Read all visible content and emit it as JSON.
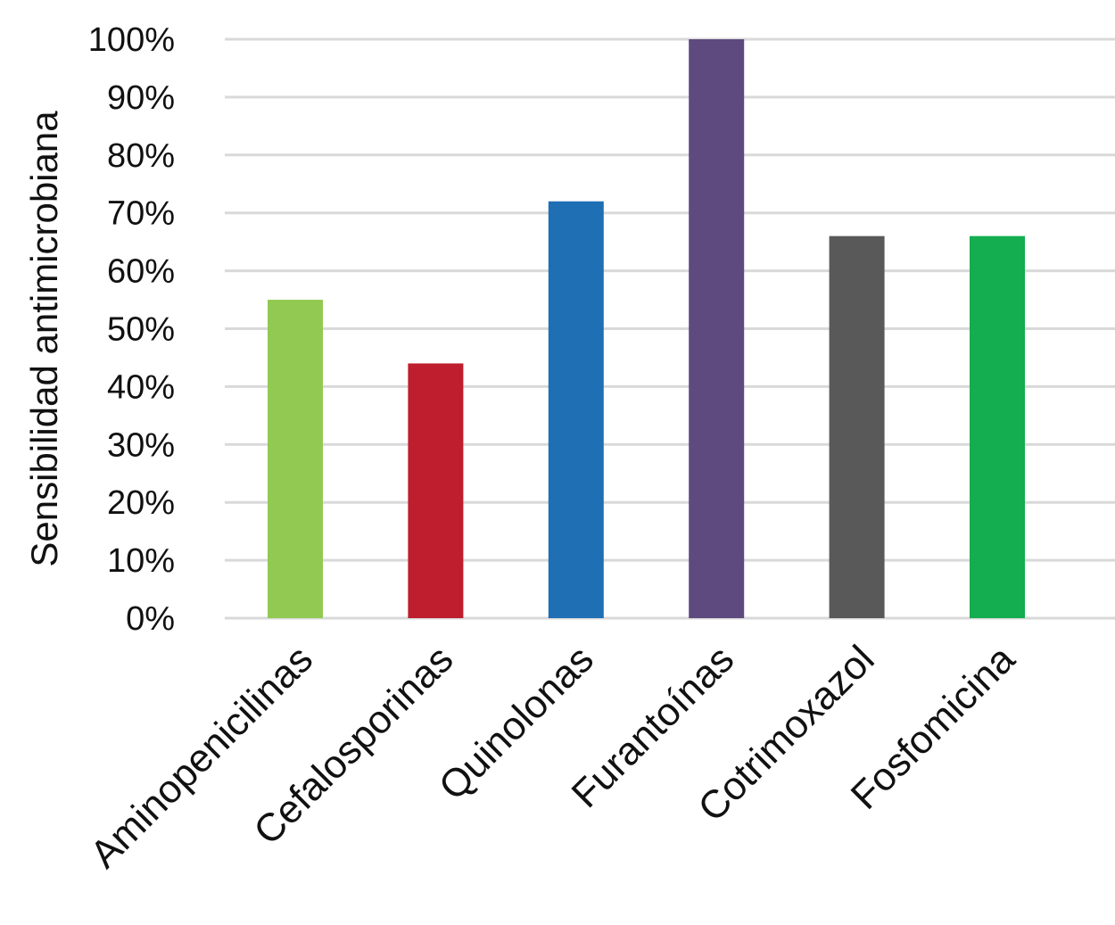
{
  "chart_data": {
    "type": "bar",
    "title": "",
    "xlabel": "",
    "ylabel": "Sensibilidad antimicrobiana",
    "categories": [
      "Aminopenicilinas",
      "Cefalosporinas",
      "Quinolonas",
      "Furantoínas",
      "Cotrimoxazol",
      "Fosfomicina"
    ],
    "values": [
      55,
      44,
      72,
      100,
      66,
      66
    ],
    "colors": [
      "#92c952",
      "#be1e2d",
      "#1f6fb5",
      "#5e4a7e",
      "#595959",
      "#14ad50"
    ],
    "ylim": [
      0,
      100
    ],
    "yticks": [
      0,
      10,
      20,
      30,
      40,
      50,
      60,
      70,
      80,
      90,
      100
    ],
    "ytick_labels": [
      "0%",
      "10%",
      "20%",
      "30%",
      "40%",
      "50%",
      "60%",
      "70%",
      "80%",
      "90%",
      "100%"
    ],
    "grid": true,
    "legend": "none"
  }
}
